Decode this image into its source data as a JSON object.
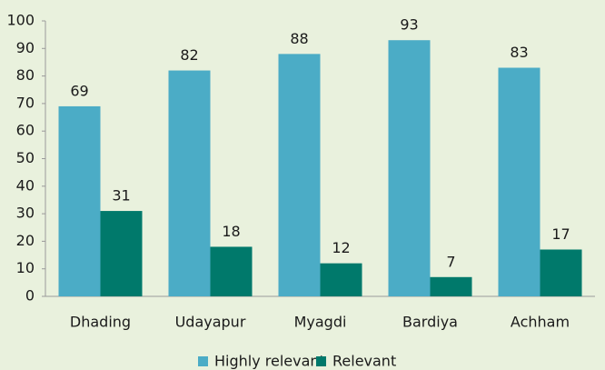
{
  "chart_data": {
    "type": "bar",
    "categories": [
      "Dhading",
      "Udayapur",
      "Myagdi",
      "Bardiya",
      "Achham"
    ],
    "series": [
      {
        "name": "Highly relevant",
        "color": "#4bacc6",
        "values": [
          69,
          82,
          88,
          93,
          83
        ]
      },
      {
        "name": "Relevant",
        "color": "#00796b",
        "values": [
          31,
          18,
          12,
          7,
          17
        ]
      }
    ],
    "ylim": [
      0,
      100
    ],
    "yticks": [
      0,
      10,
      20,
      30,
      40,
      50,
      60,
      70,
      80,
      90,
      100
    ],
    "grid": false,
    "legend": "bottom"
  }
}
